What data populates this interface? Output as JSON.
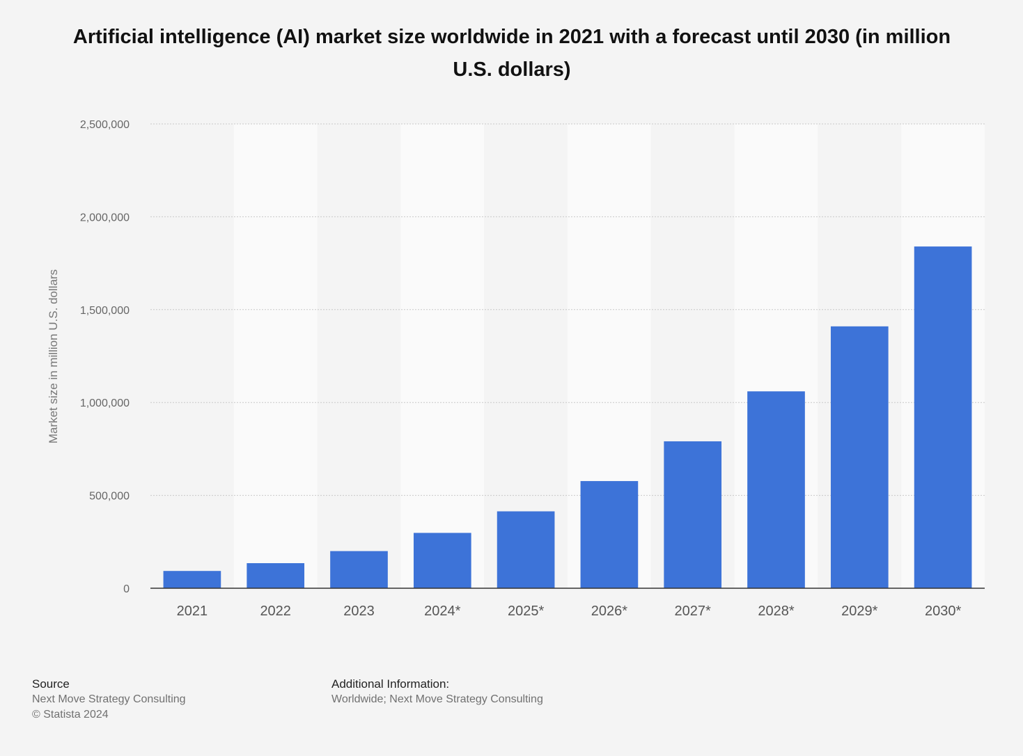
{
  "chart_data": {
    "type": "bar",
    "title": "Artificial intelligence (AI) market size worldwide in 2021 with a forecast until 2030 (in million U.S. dollars)",
    "ylabel": "Market size in million U.S. dollars",
    "xlabel": "",
    "categories": [
      "2021",
      "2022",
      "2023",
      "2024*",
      "2025*",
      "2026*",
      "2027*",
      "2028*",
      "2029*",
      "2030*"
    ],
    "values": [
      93000,
      135000,
      200000,
      298000,
      414000,
      577000,
      791000,
      1060000,
      1410000,
      1840000
    ],
    "ylim": [
      0,
      2500000
    ],
    "yticks": [
      0,
      500000,
      1000000,
      1500000,
      2000000,
      2500000
    ],
    "ytick_labels": [
      "0",
      "500,000",
      "1,000,000",
      "1,500,000",
      "2,000,000",
      "2,500,000"
    ],
    "grid": true,
    "bar_color": "#3d73d8"
  },
  "footer": {
    "source_heading": "Source",
    "source_name": "Next Move Strategy Consulting",
    "copyright": "© Statista 2024",
    "additional_heading": "Additional Information:",
    "additional_text": "Worldwide; Next Move Strategy Consulting"
  }
}
